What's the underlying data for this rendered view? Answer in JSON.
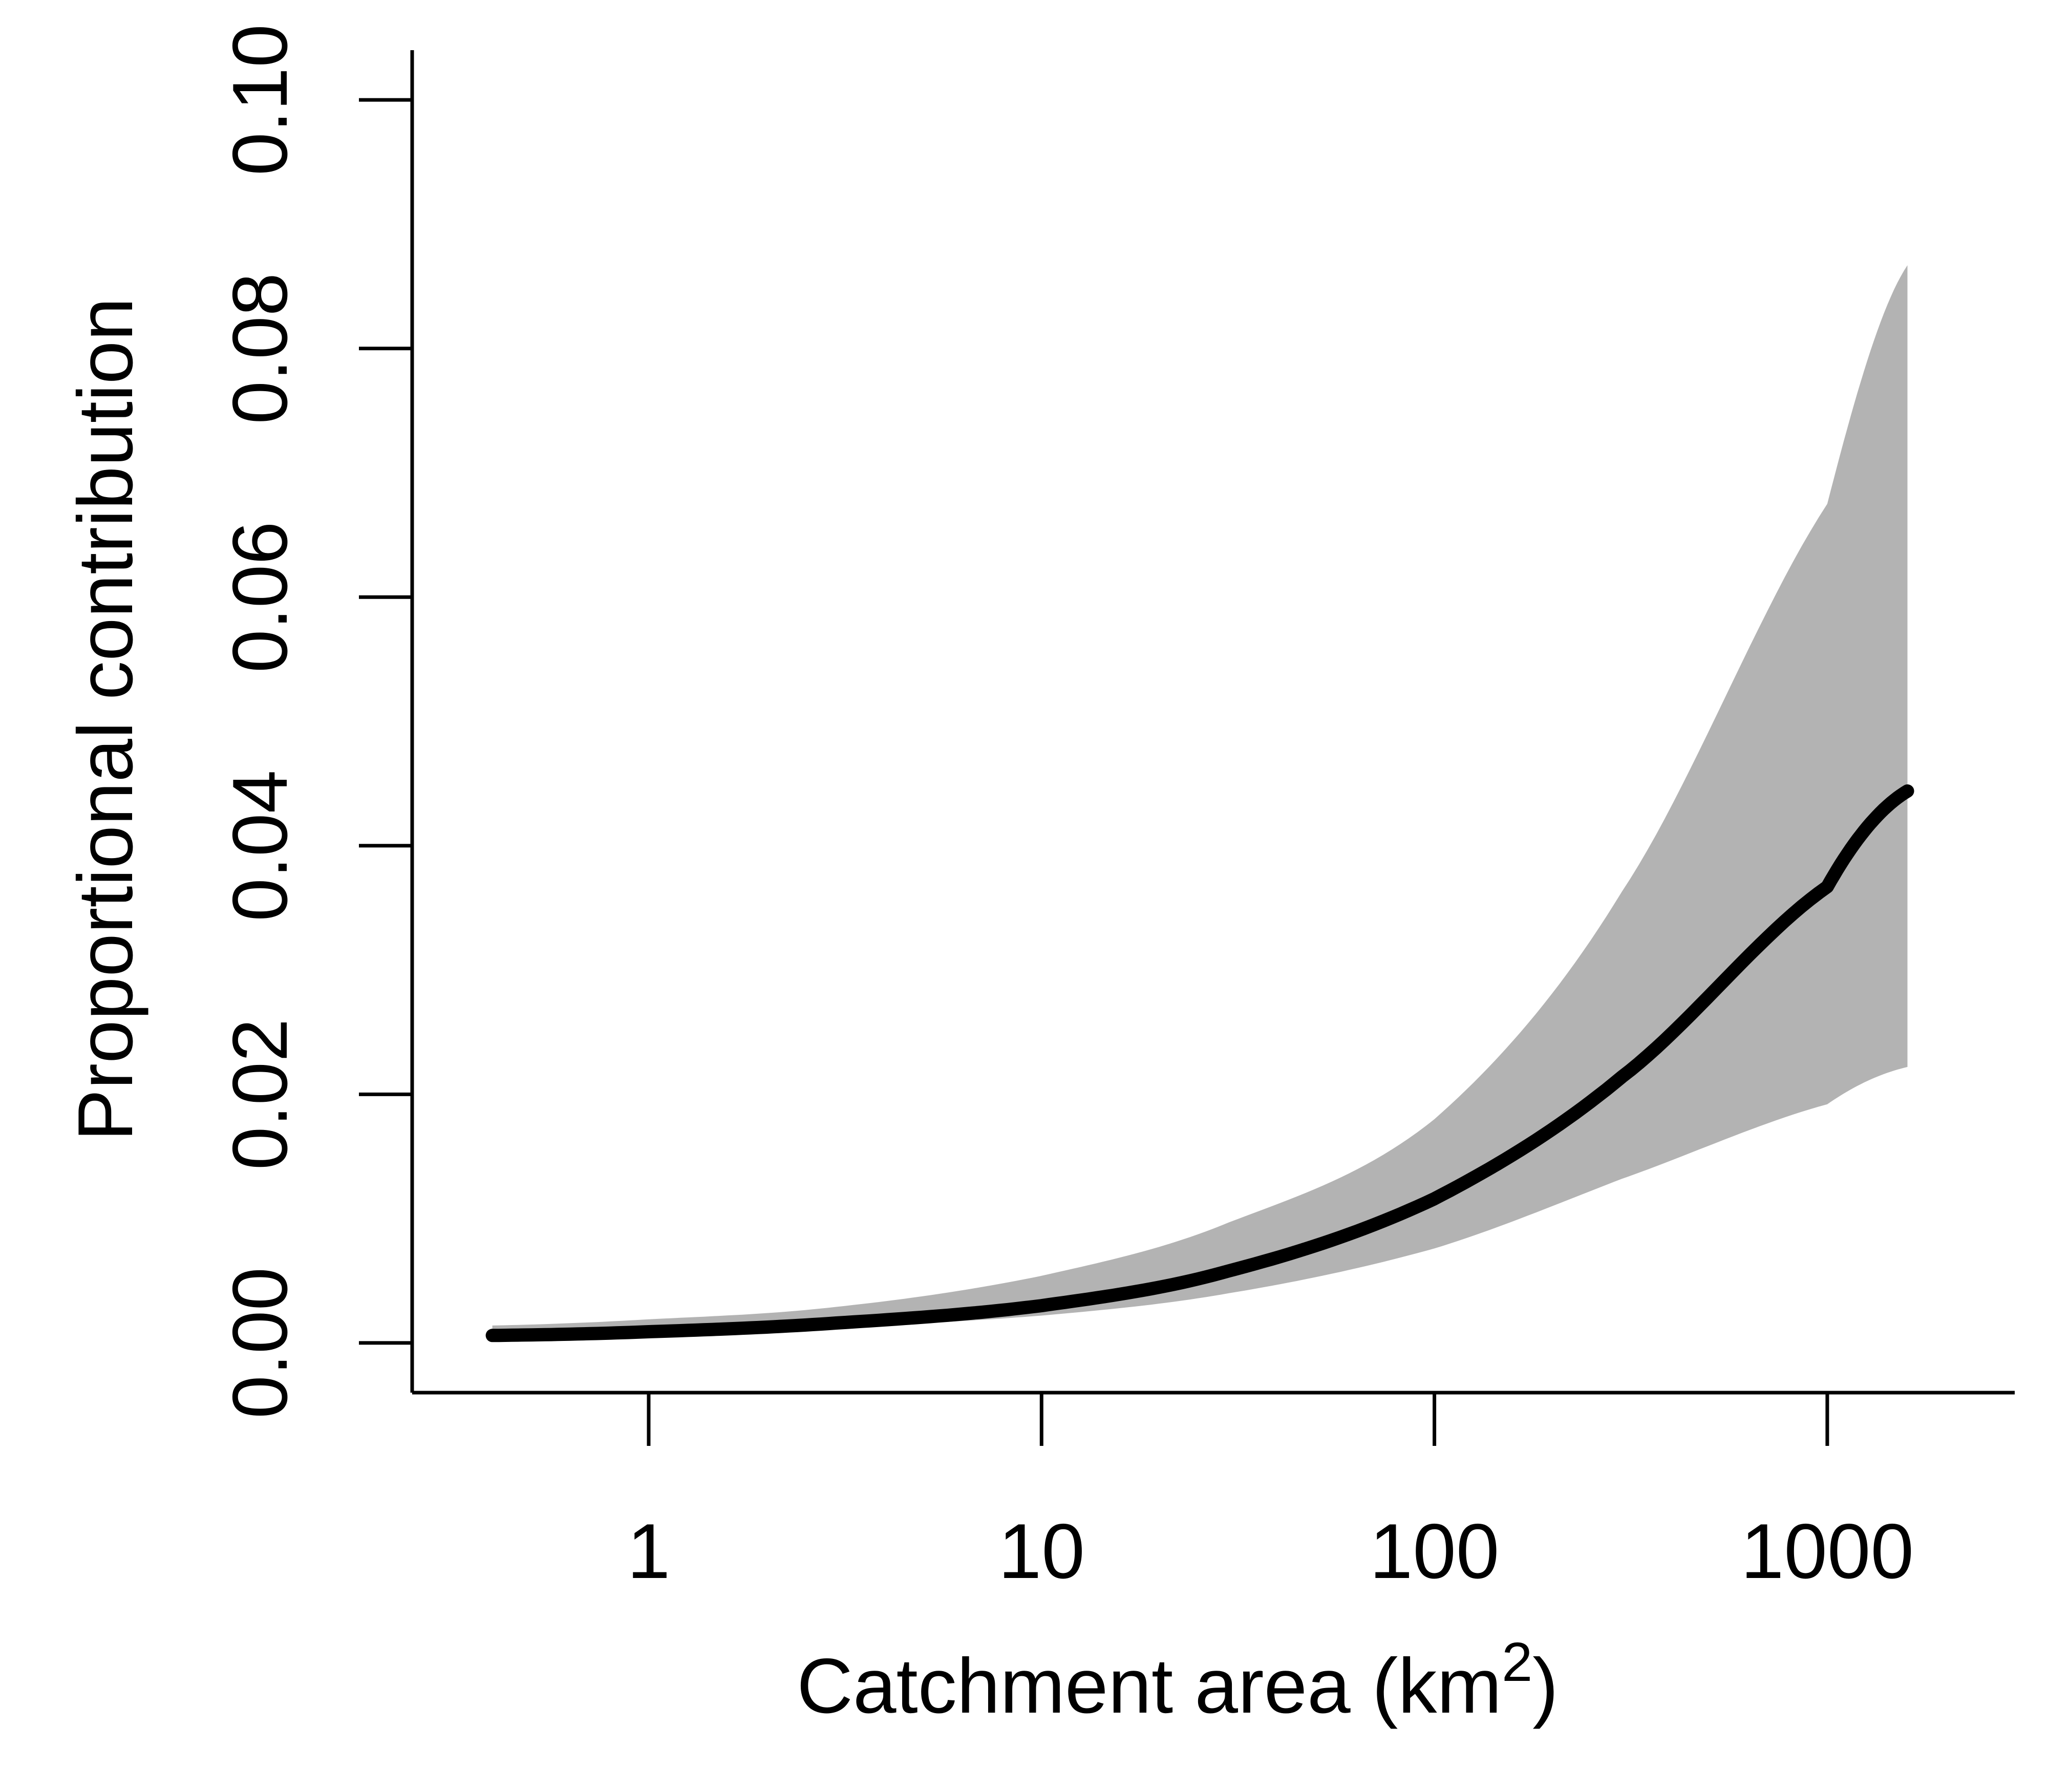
{
  "chart_data": {
    "type": "line",
    "xlabel": "Catchment area (km",
    "xlabel_superscript": "2",
    "xlabel_close": ")",
    "ylabel": "Proportional contribution",
    "x_scale": "log10",
    "xlim": [
      0.25,
      3000
    ],
    "ylim": [
      -0.004,
      0.104
    ],
    "x_ticks": [
      {
        "value": 1,
        "label": "1"
      },
      {
        "value": 10,
        "label": "10"
      },
      {
        "value": 100,
        "label": "100"
      },
      {
        "value": 1000,
        "label": "1000"
      }
    ],
    "y_ticks": [
      {
        "value": 0.0,
        "label": "0.00"
      },
      {
        "value": 0.02,
        "label": "0.02"
      },
      {
        "value": 0.04,
        "label": "0.04"
      },
      {
        "value": 0.06,
        "label": "0.06"
      },
      {
        "value": 0.08,
        "label": "0.08"
      },
      {
        "value": 0.1,
        "label": "0.10"
      }
    ],
    "colors": {
      "line": "#000000",
      "band": "#b3b3b3",
      "axis": "#000000"
    },
    "series": [
      {
        "x": [
          0.4,
          1,
          3,
          10,
          30,
          100,
          300,
          1000,
          1600
        ],
        "y": [
          0.0006,
          0.0009,
          0.0016,
          0.003,
          0.0058,
          0.0116,
          0.0214,
          0.0367,
          0.0444
        ],
        "lower": [
          0.001,
          0.0009,
          0.0013,
          0.0022,
          0.004,
          0.0076,
          0.0132,
          0.0192,
          0.0222
        ],
        "upper": [
          0.0014,
          0.0019,
          0.0029,
          0.0054,
          0.0097,
          0.018,
          0.0363,
          0.0675,
          0.0867
        ]
      }
    ]
  }
}
